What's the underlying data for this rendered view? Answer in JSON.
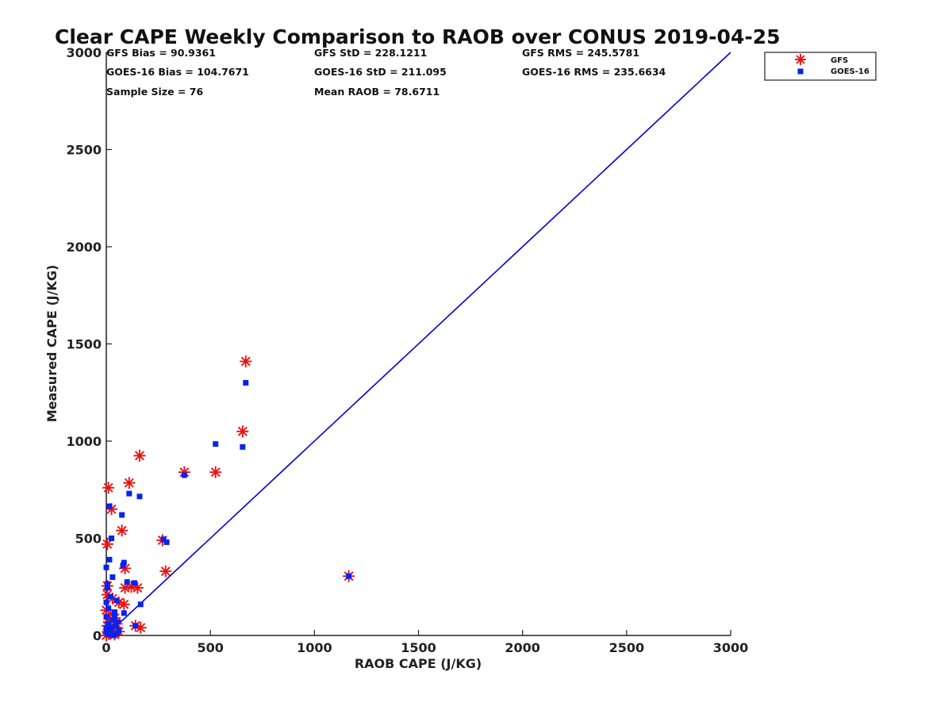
{
  "chart_data": {
    "type": "scatter",
    "title": "Clear CAPE Weekly Comparison to RAOB over CONUS 2019-04-25",
    "xlabel": "RAOB CAPE (J/KG)",
    "ylabel": "Measured CAPE (J/KG)",
    "xlim": [
      0,
      3000
    ],
    "ylim": [
      0,
      3000
    ],
    "xticks": [
      "0",
      "500",
      "1000",
      "1500",
      "2000",
      "2500",
      "3000"
    ],
    "yticks": [
      "0",
      "500",
      "1000",
      "1500",
      "2000",
      "2500",
      "3000"
    ],
    "grid": false,
    "legend_position": "top-right",
    "stats": [
      "GFS Bias = 90.9361",
      "GFS StD = 228.1211",
      "GFS RMS = 245.5781",
      "GOES-16 Bias = 104.7671",
      "GOES-16 StD = 211.095",
      "GOES-16 RMS = 235.6634",
      "Sample Size = 76",
      "Mean RAOB = 78.6711"
    ],
    "reference_line": {
      "x": [
        0,
        3000
      ],
      "y": [
        0,
        3000
      ],
      "color": "#0000dd"
    },
    "series": [
      {
        "name": "GFS",
        "marker": "asterisk",
        "color": "#ee1111",
        "points": [
          [
            10,
            760
          ],
          [
            25,
            650
          ],
          [
            5,
            470
          ],
          [
            75,
            540
          ],
          [
            110,
            785
          ],
          [
            160,
            925
          ],
          [
            375,
            840
          ],
          [
            525,
            840
          ],
          [
            655,
            1050
          ],
          [
            670,
            1410
          ],
          [
            270,
            490
          ],
          [
            285,
            330
          ],
          [
            1165,
            305
          ],
          [
            90,
            345
          ],
          [
            5,
            255
          ],
          [
            90,
            245
          ],
          [
            120,
            250
          ],
          [
            150,
            245
          ],
          [
            5,
            210
          ],
          [
            30,
            190
          ],
          [
            60,
            170
          ],
          [
            85,
            160
          ],
          [
            0,
            130
          ],
          [
            20,
            110
          ],
          [
            40,
            90
          ],
          [
            15,
            70
          ],
          [
            50,
            60
          ],
          [
            5,
            50
          ],
          [
            30,
            30
          ],
          [
            10,
            10
          ],
          [
            20,
            15
          ],
          [
            40,
            5
          ],
          [
            0,
            0
          ],
          [
            140,
            50
          ],
          [
            165,
            40
          ],
          [
            60,
            20
          ]
        ]
      },
      {
        "name": "GOES-16",
        "marker": "square",
        "color": "#0a22ee",
        "points": [
          [
            15,
            665
          ],
          [
            25,
            500
          ],
          [
            15,
            390
          ],
          [
            0,
            350
          ],
          [
            80,
            360
          ],
          [
            85,
            375
          ],
          [
            75,
            620
          ],
          [
            110,
            730
          ],
          [
            160,
            715
          ],
          [
            375,
            825
          ],
          [
            525,
            985
          ],
          [
            655,
            970
          ],
          [
            670,
            1300
          ],
          [
            275,
            495
          ],
          [
            290,
            480
          ],
          [
            1165,
            305
          ],
          [
            30,
            300
          ],
          [
            5,
            265
          ],
          [
            5,
            245
          ],
          [
            20,
            200
          ],
          [
            100,
            275
          ],
          [
            135,
            270
          ],
          [
            50,
            180
          ],
          [
            0,
            170
          ],
          [
            85,
            115
          ],
          [
            165,
            160
          ],
          [
            140,
            50
          ],
          [
            10,
            140
          ],
          [
            40,
            100
          ],
          [
            0,
            95
          ],
          [
            30,
            80
          ],
          [
            55,
            70
          ],
          [
            10,
            60
          ],
          [
            45,
            50
          ],
          [
            0,
            40
          ],
          [
            25,
            30
          ],
          [
            60,
            25
          ],
          [
            5,
            10
          ],
          [
            15,
            5
          ],
          [
            35,
            0
          ],
          [
            50,
            10
          ],
          [
            0,
            20
          ],
          [
            20,
            40
          ],
          [
            40,
            120
          ]
        ]
      }
    ]
  }
}
